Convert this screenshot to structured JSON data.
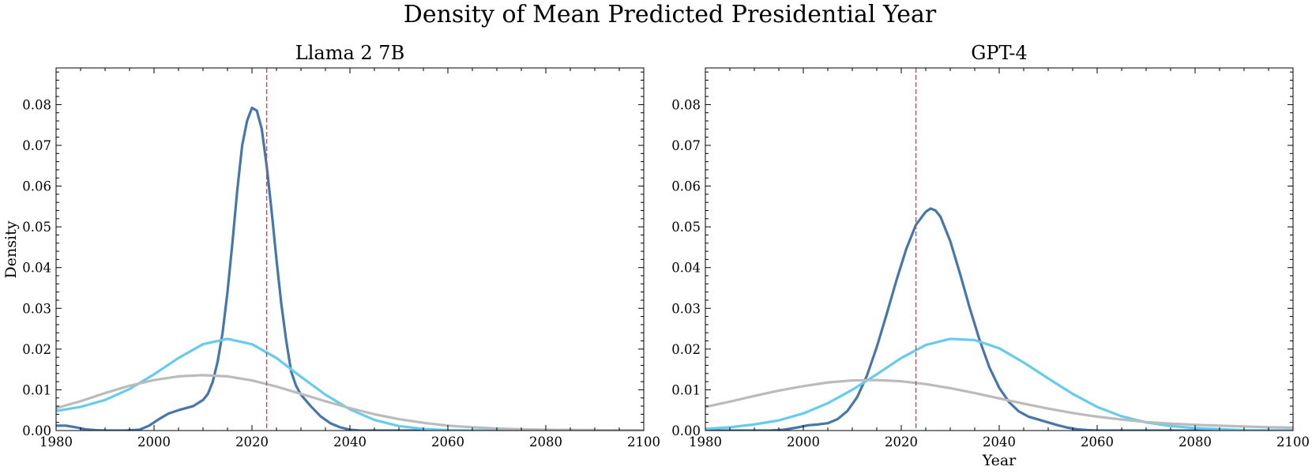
{
  "figure_title": "Density of Mean Predicted Presidential Year",
  "colors": {
    "series_dark": "#4677a8",
    "series_light": "#66cbec",
    "series_gray": "#bbbbbb",
    "reference_line": "#e8384f"
  },
  "chart_data": [
    {
      "type": "line",
      "title": "Llama 2 7B",
      "xlabel": "",
      "ylabel": "Density",
      "xlim": [
        1980,
        2100
      ],
      "ylim": [
        0,
        0.089
      ],
      "xticks": [
        "1980",
        "2000",
        "2020",
        "2040",
        "2060",
        "2080",
        "2100"
      ],
      "yticks": [
        "0.00",
        "0.01",
        "0.02",
        "0.03",
        "0.04",
        "0.05",
        "0.06",
        "0.07",
        "0.08"
      ],
      "reference_line_x": 2023,
      "legend": "none",
      "grid": false,
      "series": [
        {
          "color_key": "series_dark",
          "points": [
            [
              1980,
              0.0012
            ],
            [
              1982,
              0.0012
            ],
            [
              1984,
              0.0008
            ],
            [
              1986,
              0.0003
            ],
            [
              1988,
              0.0001
            ],
            [
              1990,
              0.0
            ],
            [
              1994,
              0.0
            ],
            [
              1997,
              0.0002
            ],
            [
              1999,
              0.0012
            ],
            [
              2001,
              0.0028
            ],
            [
              2003,
              0.0042
            ],
            [
              2005,
              0.005
            ],
            [
              2008,
              0.006
            ],
            [
              2010,
              0.0075
            ],
            [
              2011,
              0.009
            ],
            [
              2012,
              0.012
            ],
            [
              2013,
              0.017
            ],
            [
              2014,
              0.024
            ],
            [
              2015,
              0.034
            ],
            [
              2016,
              0.046
            ],
            [
              2017,
              0.059
            ],
            [
              2018,
              0.07
            ],
            [
              2019,
              0.076
            ],
            [
              2020,
              0.0792
            ],
            [
              2021,
              0.0785
            ],
            [
              2022,
              0.074
            ],
            [
              2023,
              0.065
            ],
            [
              2024,
              0.054
            ],
            [
              2025,
              0.042
            ],
            [
              2026,
              0.031
            ],
            [
              2027,
              0.022
            ],
            [
              2028,
              0.0145
            ],
            [
              2029,
              0.011
            ],
            [
              2030,
              0.0088
            ],
            [
              2032,
              0.006
            ],
            [
              2034,
              0.0035
            ],
            [
              2036,
              0.0018
            ],
            [
              2038,
              0.0008
            ],
            [
              2040,
              0.0002
            ],
            [
              2042,
              0.0
            ],
            [
              2100,
              0.0
            ]
          ]
        },
        {
          "color_key": "series_light",
          "points": [
            [
              1980,
              0.0048
            ],
            [
              1985,
              0.0058
            ],
            [
              1990,
              0.0075
            ],
            [
              1995,
              0.0102
            ],
            [
              2000,
              0.0138
            ],
            [
              2005,
              0.0178
            ],
            [
              2010,
              0.0212
            ],
            [
              2015,
              0.0225
            ],
            [
              2020,
              0.0212
            ],
            [
              2025,
              0.0178
            ],
            [
              2030,
              0.0132
            ],
            [
              2035,
              0.0088
            ],
            [
              2040,
              0.0052
            ],
            [
              2045,
              0.0026
            ],
            [
              2050,
              0.0011
            ],
            [
              2055,
              0.0004
            ],
            [
              2060,
              0.0001
            ],
            [
              2065,
              0.0
            ],
            [
              2100,
              0.0
            ]
          ]
        },
        {
          "color_key": "series_gray",
          "points": [
            [
              1980,
              0.0055
            ],
            [
              1985,
              0.0072
            ],
            [
              1990,
              0.0092
            ],
            [
              1995,
              0.011
            ],
            [
              2000,
              0.0124
            ],
            [
              2005,
              0.0133
            ],
            [
              2010,
              0.0136
            ],
            [
              2015,
              0.0133
            ],
            [
              2020,
              0.0123
            ],
            [
              2025,
              0.0108
            ],
            [
              2030,
              0.009
            ],
            [
              2035,
              0.0072
            ],
            [
              2040,
              0.0055
            ],
            [
              2045,
              0.004
            ],
            [
              2050,
              0.0028
            ],
            [
              2055,
              0.0019
            ],
            [
              2060,
              0.0012
            ],
            [
              2065,
              0.0008
            ],
            [
              2070,
              0.0005
            ],
            [
              2075,
              0.0003
            ],
            [
              2080,
              0.0002
            ],
            [
              2090,
              0.0001
            ],
            [
              2100,
              0.0
            ]
          ]
        }
      ]
    },
    {
      "type": "line",
      "title": "GPT-4",
      "xlabel": "Year",
      "ylabel": "",
      "xlim": [
        1980,
        2100
      ],
      "ylim": [
        0,
        0.089
      ],
      "xticks": [
        "1980",
        "2000",
        "2020",
        "2040",
        "2060",
        "2080",
        "2100"
      ],
      "yticks": [
        "0.00",
        "0.01",
        "0.02",
        "0.03",
        "0.04",
        "0.05",
        "0.06",
        "0.07",
        "0.08"
      ],
      "reference_line_x": 2023,
      "legend": "none",
      "grid": false,
      "series": [
        {
          "color_key": "series_dark",
          "points": [
            [
              1980,
              0.0
            ],
            [
              1993,
              0.0
            ],
            [
              1996,
              0.0002
            ],
            [
              1999,
              0.0008
            ],
            [
              2001,
              0.0013
            ],
            [
              2003,
              0.0015
            ],
            [
              2005,
              0.0018
            ],
            [
              2007,
              0.0028
            ],
            [
              2009,
              0.0048
            ],
            [
              2011,
              0.0082
            ],
            [
              2013,
              0.0135
            ],
            [
              2015,
              0.0205
            ],
            [
              2017,
              0.0285
            ],
            [
              2019,
              0.0368
            ],
            [
              2021,
              0.0445
            ],
            [
              2023,
              0.0505
            ],
            [
              2025,
              0.0537
            ],
            [
              2026,
              0.0545
            ],
            [
              2027,
              0.054
            ],
            [
              2028,
              0.0525
            ],
            [
              2030,
              0.0465
            ],
            [
              2032,
              0.0385
            ],
            [
              2034,
              0.03
            ],
            [
              2036,
              0.0222
            ],
            [
              2038,
              0.0155
            ],
            [
              2040,
              0.0105
            ],
            [
              2042,
              0.007
            ],
            [
              2044,
              0.0047
            ],
            [
              2046,
              0.0034
            ],
            [
              2048,
              0.0027
            ],
            [
              2050,
              0.002
            ],
            [
              2052,
              0.0013
            ],
            [
              2054,
              0.0007
            ],
            [
              2056,
              0.0003
            ],
            [
              2058,
              0.0001
            ],
            [
              2060,
              0.0
            ],
            [
              2100,
              0.0
            ]
          ]
        },
        {
          "color_key": "series_light",
          "points": [
            [
              1980,
              0.0004
            ],
            [
              1985,
              0.0008
            ],
            [
              1990,
              0.0015
            ],
            [
              1995,
              0.0025
            ],
            [
              2000,
              0.0042
            ],
            [
              2005,
              0.0067
            ],
            [
              2010,
              0.01
            ],
            [
              2015,
              0.0138
            ],
            [
              2020,
              0.0178
            ],
            [
              2025,
              0.021
            ],
            [
              2030,
              0.0225
            ],
            [
              2035,
              0.0222
            ],
            [
              2040,
              0.0202
            ],
            [
              2045,
              0.0167
            ],
            [
              2050,
              0.0128
            ],
            [
              2055,
              0.009
            ],
            [
              2060,
              0.0058
            ],
            [
              2065,
              0.0035
            ],
            [
              2070,
              0.002
            ],
            [
              2075,
              0.0011
            ],
            [
              2080,
              0.0006
            ],
            [
              2090,
              0.0001
            ],
            [
              2100,
              0.0
            ]
          ]
        },
        {
          "color_key": "series_gray",
          "points": [
            [
              1980,
              0.0058
            ],
            [
              1985,
              0.0071
            ],
            [
              1990,
              0.0085
            ],
            [
              1995,
              0.0098
            ],
            [
              2000,
              0.0109
            ],
            [
              2005,
              0.0118
            ],
            [
              2010,
              0.0123
            ],
            [
              2015,
              0.0124
            ],
            [
              2020,
              0.0121
            ],
            [
              2025,
              0.0114
            ],
            [
              2030,
              0.0104
            ],
            [
              2035,
              0.0092
            ],
            [
              2040,
              0.0079
            ],
            [
              2045,
              0.0066
            ],
            [
              2050,
              0.0054
            ],
            [
              2055,
              0.0043
            ],
            [
              2060,
              0.0034
            ],
            [
              2065,
              0.0027
            ],
            [
              2070,
              0.0021
            ],
            [
              2075,
              0.0017
            ],
            [
              2080,
              0.0014
            ],
            [
              2085,
              0.0012
            ],
            [
              2090,
              0.001
            ],
            [
              2095,
              0.0008
            ],
            [
              2100,
              0.0007
            ]
          ]
        }
      ]
    }
  ]
}
